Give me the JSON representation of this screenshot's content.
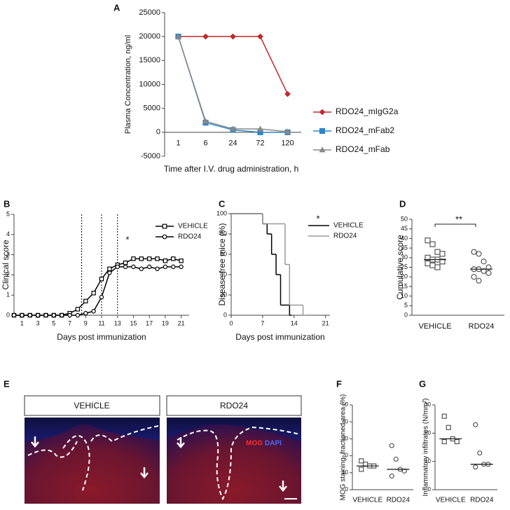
{
  "chart_data": [
    {
      "panel_label": "A",
      "type": "line",
      "y_label": "Plasma Concentration, ng/ml",
      "x_label": "Time after I.V. drug administration, h",
      "categories": [
        "1",
        "6",
        "24",
        "72",
        "120"
      ],
      "ylim": [
        -5000,
        25000
      ],
      "yticks": [
        -5000,
        0,
        5000,
        10000,
        15000,
        20000,
        25000
      ],
      "legend": "right",
      "series": [
        {
          "name": "RDO24_mIgG2a",
          "color": "#c0282d",
          "marker": "diamond",
          "values": [
            20000,
            20000,
            20000,
            20000,
            8000
          ]
        },
        {
          "name": "RDO24_mFab2",
          "color": "#2e86c8",
          "marker": "square",
          "values": [
            20000,
            2000,
            500,
            0,
            0
          ]
        },
        {
          "name": "RDO24_mFab",
          "color": "#888888",
          "marker": "triangle",
          "values": [
            20000,
            2300,
            700,
            700,
            100
          ]
        }
      ]
    },
    {
      "panel_label": "B",
      "type": "line",
      "y_label": "Clinical score",
      "x_label": "Days post immunization",
      "x": [
        0,
        1,
        2,
        3,
        4,
        5,
        6,
        7,
        8,
        9,
        10,
        11,
        12,
        13,
        14,
        15,
        16,
        17,
        18,
        19,
        20,
        21
      ],
      "xlim": [
        0,
        22
      ],
      "xticks": [
        1,
        3,
        5,
        7,
        9,
        11,
        13,
        15,
        17,
        19,
        21
      ],
      "ylim": [
        0,
        5
      ],
      "yticks": [
        0,
        1,
        2,
        3,
        4,
        5
      ],
      "vlines": [
        8.5,
        11,
        13
      ],
      "annotation": "*",
      "legend": "top-right",
      "marker_fill": "#ffffff",
      "series": [
        {
          "name": "VEHICLE",
          "color": "#000000",
          "marker": "square",
          "values": [
            0,
            0,
            0,
            0,
            0,
            0,
            0,
            0.1,
            0.3,
            0.7,
            1.1,
            1.8,
            2.3,
            2.5,
            2.6,
            2.8,
            2.8,
            2.8,
            2.8,
            2.7,
            2.8,
            2.7
          ]
        },
        {
          "name": "RDO24",
          "color": "#000000",
          "marker": "circle",
          "values": [
            0,
            0,
            0,
            0,
            0,
            0,
            0,
            0,
            0,
            0.1,
            0.2,
            0.9,
            2.1,
            2.4,
            2.4,
            2.4,
            2.3,
            2.4,
            2.3,
            2.4,
            2.4,
            2.4
          ]
        }
      ]
    },
    {
      "panel_label": "C",
      "type": "step",
      "y_label": "Disease free mice (%)",
      "x_label": "Days post immunization",
      "xlim": [
        0,
        22
      ],
      "xticks": [
        0,
        7,
        14,
        21
      ],
      "ylim": [
        0,
        100
      ],
      "yticks": [
        0,
        20,
        40,
        60,
        80,
        100
      ],
      "annotation": "*",
      "legend": "top-right",
      "series": [
        {
          "name": "VEHICLE",
          "color": "#000000",
          "x": [
            0,
            7,
            8,
            9,
            10,
            11,
            13
          ],
          "values": [
            100,
            90,
            80,
            60,
            40,
            10,
            0
          ]
        },
        {
          "name": "RDO24",
          "color": "#999999",
          "x": [
            0,
            7,
            12,
            13,
            16
          ],
          "values": [
            100,
            90,
            50,
            10,
            0
          ]
        }
      ]
    },
    {
      "panel_label": "D",
      "type": "dot",
      "y_label": "Cumulative score",
      "categories": [
        "VEHICLE",
        "RDO24"
      ],
      "ylim": [
        0,
        50
      ],
      "yticks": [
        0,
        5,
        10,
        15,
        20,
        25,
        30,
        35,
        40,
        45,
        50
      ],
      "annotation": "**",
      "groups": [
        {
          "marker": "square",
          "values": [
            39,
            37,
            33,
            32,
            30,
            29,
            29,
            28,
            27,
            26,
            25
          ],
          "median": 29
        },
        {
          "marker": "circle",
          "values": [
            33,
            32,
            28,
            25,
            24,
            24,
            23,
            22,
            20,
            18
          ],
          "median": 24
        }
      ]
    },
    {
      "panel_label": "F",
      "type": "dot",
      "y_label": "MOG staining, fractioned area (%)",
      "categories": [
        "VEHICLE",
        "RDO24"
      ],
      "ylim": [
        0,
        50
      ],
      "yticks": [
        0,
        10,
        20,
        30,
        40,
        50
      ],
      "groups": [
        {
          "marker": "square",
          "values": [
            17,
            15,
            14,
            14,
            12
          ],
          "median": 14
        },
        {
          "marker": "circle",
          "values": [
            26,
            18,
            12,
            11,
            8
          ],
          "median": 12
        }
      ]
    },
    {
      "panel_label": "G",
      "type": "dot",
      "y_label": "Inflammatory infiltrates (N/mm²)",
      "categories": [
        "VEHICLE",
        "RDO24"
      ],
      "ylim": [
        0,
        30
      ],
      "yticks": [
        0,
        10,
        20,
        30
      ],
      "groups": [
        {
          "marker": "square",
          "values": [
            26,
            22,
            18,
            17,
            17
          ],
          "median": 18
        },
        {
          "marker": "circle",
          "values": [
            23,
            13,
            9,
            9,
            8
          ],
          "median": 9
        }
      ]
    }
  ],
  "micrograph": {
    "panel_label": "E",
    "titles": [
      "VEHICLE",
      "RDO24"
    ],
    "stains": [
      "MOG",
      "DAPI"
    ]
  }
}
